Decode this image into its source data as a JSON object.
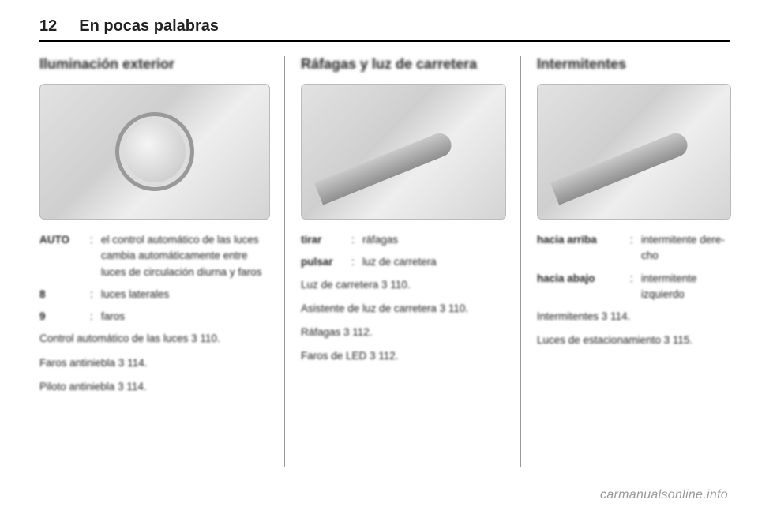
{
  "header": {
    "page": "12",
    "chapter": "En pocas palabras"
  },
  "col1": {
    "title": "Iluminación exterior",
    "defs": [
      {
        "k": "AUTO",
        "sep": ":",
        "v": "el control automático de las luces cambia automática­mente entre luces de circu­lación diurna y faros"
      },
      {
        "k": "8",
        "sep": ":",
        "v": "luces laterales"
      },
      {
        "k": "9",
        "sep": ":",
        "v": "faros"
      }
    ],
    "paras": [
      "Control automático de las luces 3 110.",
      "Faros antiniebla 3 114.",
      "Piloto antiniebla 3 114."
    ]
  },
  "col2": {
    "title": "Ráfagas y luz de carretera",
    "defs": [
      {
        "k": "tirar",
        "sep": ":",
        "v": "ráfagas"
      },
      {
        "k": "pulsar",
        "sep": ":",
        "v": "luz de carretera"
      }
    ],
    "paras": [
      "Luz de carretera 3 110.",
      "Asistente de luz de carretera 3 110.",
      "Ráfagas 3 112.",
      "Faros de LED 3 112."
    ]
  },
  "col3": {
    "title": "Intermitentes",
    "defs": [
      {
        "k": "hacia arriba",
        "sep": ":",
        "v": "intermitente dere­cho"
      },
      {
        "k": "hacia abajo",
        "sep": ":",
        "v": "intermitente izquierdo"
      }
    ],
    "paras": [
      "Intermitentes 3 114.",
      "Luces de estacionamiento 3 115."
    ]
  },
  "watermark": "carmanualsonline.info"
}
